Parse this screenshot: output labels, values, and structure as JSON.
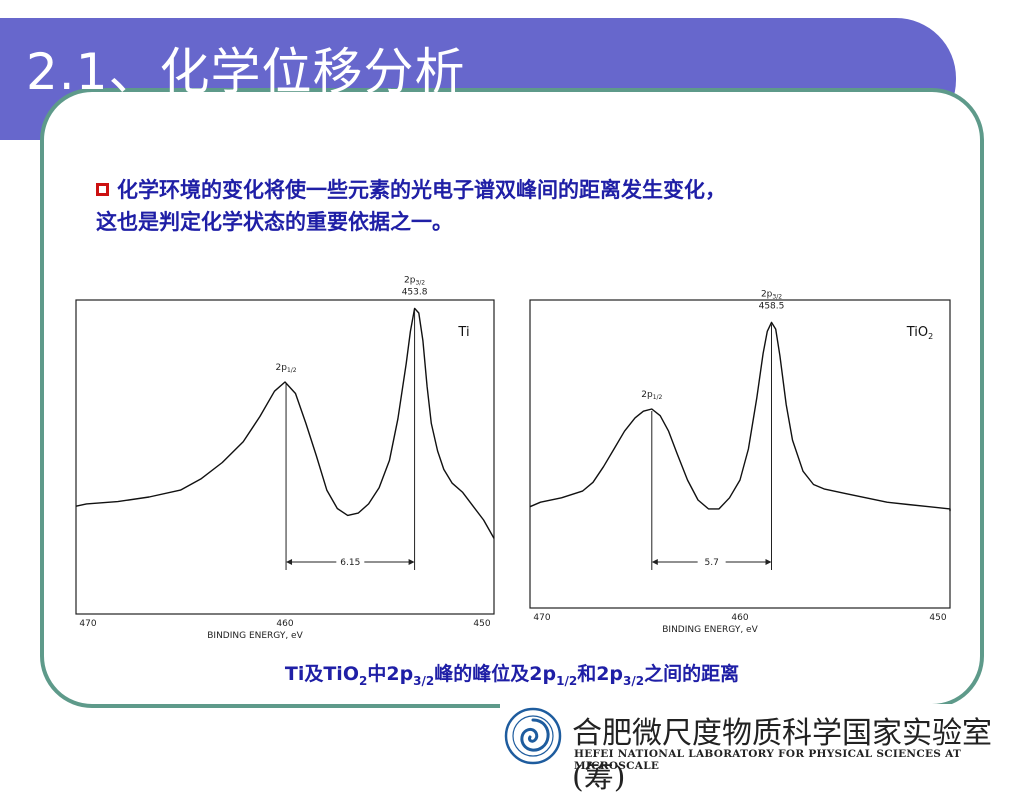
{
  "slide": {
    "title": "2.1、化学位移分析",
    "bullet_line1": "化学环境的变化将使一些元素的光电子谱双峰间的距离发生变化，",
    "bullet_line2": "这也是判定化学状态的重要依据之一。",
    "caption_parts": [
      "Ti及TiO",
      "2",
      "中2p",
      "3/2",
      "峰的峰位及2p",
      "1/2",
      "和2p",
      "3/2",
      "之间的距离"
    ]
  },
  "colors": {
    "title_bar": "#6767cc",
    "frame": "#5e9a8a",
    "text_blue": "#1f1fa6",
    "bullet_red": "#cc1111"
  },
  "logo": {
    "name_cn": "合肥微尺度物质科学国家实验室(筹)",
    "name_en": "HEFEI NATIONAL LABORATORY FOR PHYSICAL SCIENCES AT MICROSCALE"
  },
  "chart_data": [
    {
      "type": "line",
      "sample": "Ti",
      "xlabel": "BINDING ENERGY, eV",
      "x_ticks": [
        "470",
        "460",
        "450"
      ],
      "xlim": [
        470,
        450
      ],
      "peaks": [
        {
          "label": "2p",
          "sub": "1/2",
          "x": 459.95,
          "value": ""
        },
        {
          "label": "2p",
          "sub": "3/2",
          "x": 453.8,
          "value": "453.8"
        }
      ],
      "separation_label": "6.15",
      "x": [
        471.0,
        469.5,
        468.0,
        466.5,
        465.0,
        464.0,
        463.0,
        462.0,
        461.2,
        460.5,
        460.0,
        459.5,
        459.0,
        458.5,
        458.0,
        457.5,
        457.0,
        456.5,
        456.0,
        455.5,
        455.0,
        454.6,
        454.2,
        454.0,
        453.8,
        453.6,
        453.4,
        453.2,
        453.0,
        452.7,
        452.4,
        452.0,
        451.5,
        451.0,
        450.5,
        450.0
      ],
      "y": [
        0.06,
        0.07,
        0.08,
        0.1,
        0.13,
        0.18,
        0.25,
        0.34,
        0.45,
        0.56,
        0.6,
        0.55,
        0.42,
        0.28,
        0.13,
        0.05,
        0.02,
        0.03,
        0.07,
        0.14,
        0.26,
        0.44,
        0.68,
        0.82,
        0.92,
        0.9,
        0.78,
        0.58,
        0.42,
        0.3,
        0.22,
        0.16,
        0.12,
        0.06,
        0.0,
        -0.08
      ]
    },
    {
      "type": "line",
      "sample": "TiO2",
      "xlabel": "BINDING ENERGY, eV",
      "x_ticks": [
        "470",
        "460",
        "450"
      ],
      "xlim": [
        470,
        450
      ],
      "peaks": [
        {
          "label": "2p",
          "sub": "1/2",
          "x": 464.2,
          "value": ""
        },
        {
          "label": "2p",
          "sub": "3/2",
          "x": 458.5,
          "value": "458.5"
        }
      ],
      "separation_label": "5.7",
      "x": [
        470.5,
        469.5,
        468.5,
        467.5,
        467.0,
        466.5,
        466.0,
        465.5,
        465.0,
        464.6,
        464.2,
        463.8,
        463.4,
        463.0,
        462.5,
        462.0,
        461.5,
        461.0,
        460.5,
        460.0,
        459.6,
        459.2,
        458.9,
        458.7,
        458.5,
        458.3,
        458.1,
        457.8,
        457.5,
        457.0,
        456.5,
        456.0,
        455.0,
        454.0,
        453.0,
        452.0,
        451.0,
        450.0,
        449.5
      ],
      "y": [
        0.06,
        0.08,
        0.1,
        0.13,
        0.17,
        0.24,
        0.32,
        0.4,
        0.46,
        0.49,
        0.5,
        0.47,
        0.4,
        0.3,
        0.18,
        0.09,
        0.05,
        0.05,
        0.1,
        0.18,
        0.32,
        0.55,
        0.75,
        0.85,
        0.89,
        0.86,
        0.74,
        0.52,
        0.36,
        0.22,
        0.16,
        0.14,
        0.12,
        0.1,
        0.08,
        0.07,
        0.06,
        0.05,
        0.04
      ]
    }
  ]
}
